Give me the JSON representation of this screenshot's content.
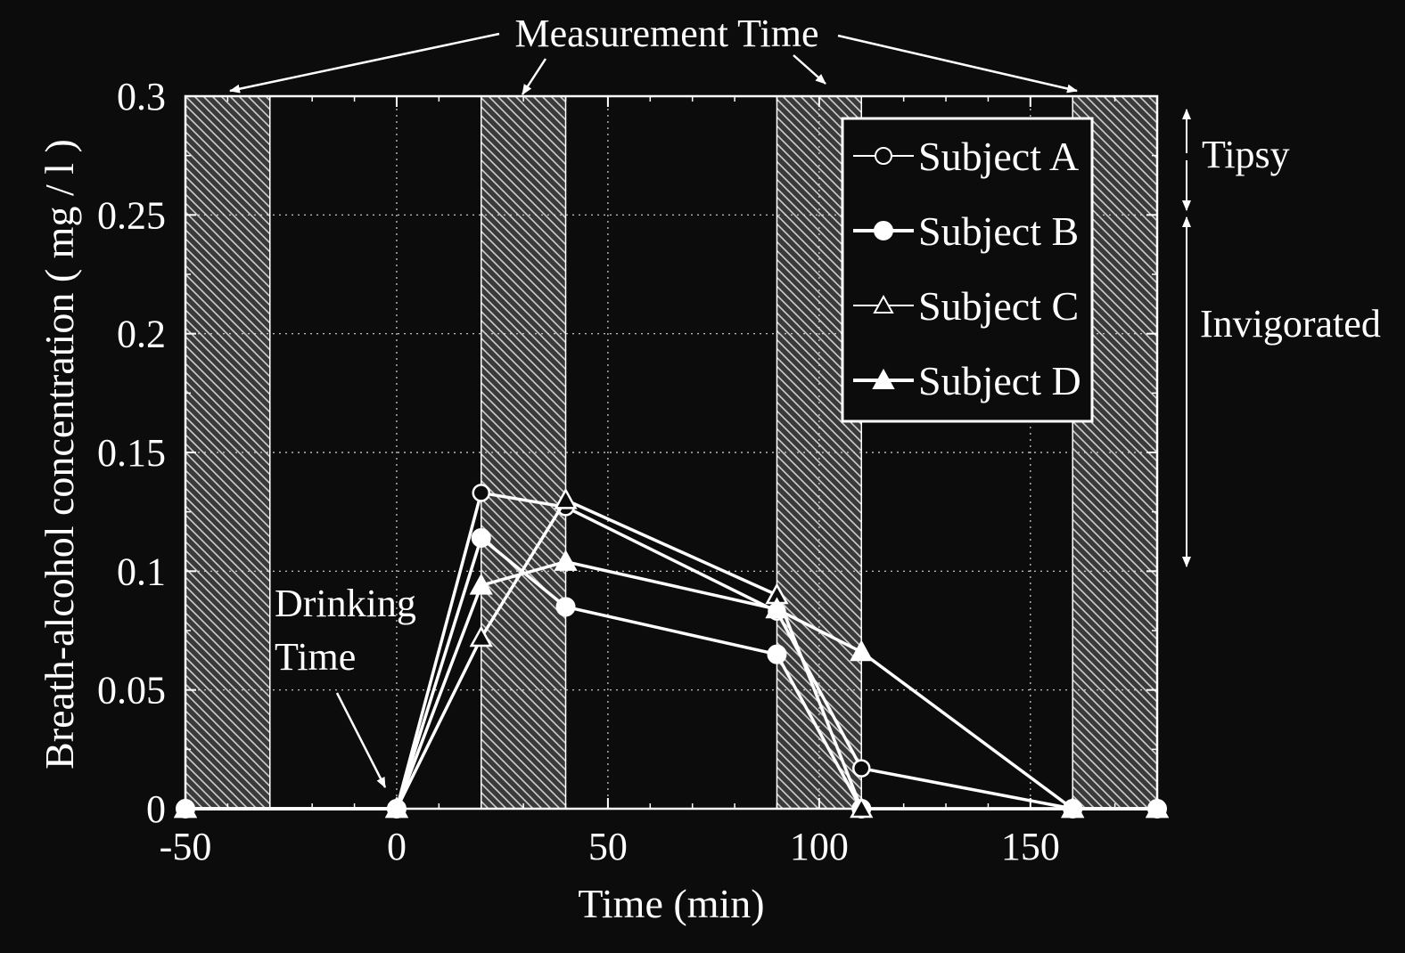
{
  "background_color": "#0c0c0c",
  "foreground_color": "#ffffff",
  "chart_data": {
    "type": "line",
    "title": "",
    "xlabel": "Time (min)",
    "ylabel": "Breath-alcohol concentration ( mg / l )",
    "xlim": [
      -50,
      180
    ],
    "ylim": [
      0,
      0.3
    ],
    "x_ticks": [
      -50,
      0,
      50,
      100,
      150
    ],
    "x_tick_labels": [
      "-50",
      "0",
      "50",
      "100",
      "150"
    ],
    "y_ticks": [
      0,
      0.05,
      0.1,
      0.15,
      0.2,
      0.25,
      0.3
    ],
    "y_tick_labels": [
      "0",
      "0.05",
      "0.1",
      "0.15",
      "0.2",
      "0.25",
      "0.3"
    ],
    "grid": true,
    "legend_position": "top-right",
    "measurement_windows": [
      [
        -50,
        -30
      ],
      [
        20,
        40
      ],
      [
        90,
        110
      ],
      [
        160,
        180
      ]
    ],
    "series": [
      {
        "name": "Subject A",
        "marker": "circle-open",
        "x": [
          -50,
          0,
          20,
          40,
          90,
          110,
          160,
          180
        ],
        "y": [
          0,
          0,
          0.133,
          0.127,
          0.083,
          0.017,
          0,
          0
        ]
      },
      {
        "name": "Subject B",
        "marker": "circle-filled",
        "x": [
          -50,
          0,
          20,
          40,
          90,
          110,
          160,
          180
        ],
        "y": [
          0,
          0,
          0.114,
          0.085,
          0.065,
          0,
          0,
          0
        ]
      },
      {
        "name": "Subject C",
        "marker": "triangle-open",
        "x": [
          -50,
          0,
          20,
          40,
          90,
          110,
          160,
          180
        ],
        "y": [
          0,
          0,
          0.072,
          0.13,
          0.09,
          0,
          0,
          0
        ]
      },
      {
        "name": "Subject D",
        "marker": "triangle-filled",
        "x": [
          -50,
          0,
          20,
          40,
          90,
          110,
          160,
          180
        ],
        "y": [
          0,
          0,
          0.094,
          0.104,
          0.084,
          0.066,
          0,
          0
        ]
      }
    ],
    "annotations": {
      "measurement_time": "Measurement Time",
      "drinking_time_line1": "Drinking",
      "drinking_time_line2": "Time",
      "tipsy": "Tipsy",
      "invigorated": "Invigorated"
    }
  }
}
